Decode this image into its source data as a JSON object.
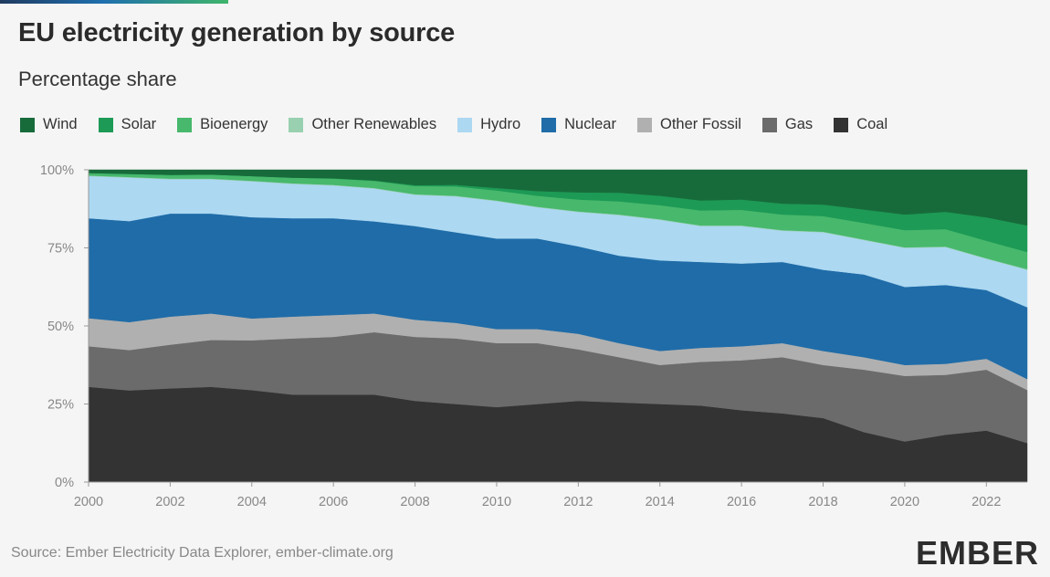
{
  "title": "EU electricity generation by source",
  "subtitle": "Percentage share",
  "source": "Source: Ember Electricity Data Explorer, ember-climate.org",
  "logo": "EMBER",
  "chart_data": {
    "type": "area",
    "stacked": true,
    "x": [
      2000,
      2001,
      2002,
      2003,
      2004,
      2005,
      2006,
      2007,
      2008,
      2009,
      2010,
      2011,
      2012,
      2013,
      2014,
      2015,
      2016,
      2017,
      2018,
      2019,
      2020,
      2021,
      2022,
      2023
    ],
    "x_ticks": [
      "2000",
      "2002",
      "2004",
      "2006",
      "2008",
      "2010",
      "2012",
      "2014",
      "2016",
      "2018",
      "2020",
      "2022"
    ],
    "y_ticks": [
      "0%",
      "25%",
      "50%",
      "75%",
      "100%"
    ],
    "ylim": [
      0,
      100
    ],
    "legend_position": "top-left",
    "series": [
      {
        "name": "Coal",
        "color": "#333333",
        "values": [
          30.5,
          29.5,
          30.0,
          30.5,
          29.5,
          28.0,
          28.0,
          28.0,
          26.0,
          25.0,
          24.0,
          25.0,
          26.0,
          25.5,
          25.0,
          24.5,
          23.0,
          22.0,
          20.5,
          16.0,
          13.0,
          15.0,
          16.5,
          12.5
        ]
      },
      {
        "name": "Gas",
        "color": "#6b6b6b",
        "values": [
          13.0,
          13.0,
          14.0,
          15.0,
          16.0,
          18.0,
          18.5,
          20.0,
          20.5,
          21.0,
          20.5,
          19.5,
          16.5,
          14.5,
          12.5,
          14.0,
          16.0,
          18.0,
          17.0,
          20.0,
          21.0,
          19.0,
          19.5,
          17.0
        ]
      },
      {
        "name": "Other Fossil",
        "color": "#b0b0b0",
        "values": [
          9.0,
          9.0,
          9.0,
          8.5,
          7.0,
          7.0,
          7.0,
          6.0,
          5.5,
          5.0,
          4.5,
          4.5,
          5.0,
          4.5,
          4.5,
          4.5,
          4.5,
          4.5,
          4.5,
          4.0,
          3.5,
          3.5,
          3.5,
          3.5
        ]
      },
      {
        "name": "Nuclear",
        "color": "#1f6ca8",
        "values": [
          32.0,
          32.5,
          33.0,
          32.0,
          32.5,
          31.5,
          31.0,
          29.5,
          30.0,
          29.0,
          29.0,
          29.0,
          28.0,
          28.0,
          29.0,
          27.5,
          26.5,
          26.0,
          26.0,
          26.5,
          25.0,
          25.0,
          22.0,
          23.0
        ]
      },
      {
        "name": "Hydro",
        "color": "#acd8f2",
        "values": [
          13.5,
          14.0,
          11.0,
          11.0,
          11.5,
          11.0,
          10.5,
          10.5,
          10.0,
          11.5,
          12.0,
          10.0,
          11.0,
          13.0,
          13.0,
          11.5,
          12.0,
          10.0,
          12.0,
          11.0,
          12.5,
          12.0,
          10.0,
          12.0
        ]
      },
      {
        "name": "Other Renewables",
        "color": "#98d0b0",
        "values": [
          0.2,
          0.2,
          0.2,
          0.2,
          0.2,
          0.2,
          0.2,
          0.2,
          0.2,
          0.2,
          0.2,
          0.2,
          0.2,
          0.2,
          0.2,
          0.2,
          0.2,
          0.2,
          0.2,
          0.2,
          0.2,
          0.2,
          0.2,
          0.2
        ]
      },
      {
        "name": "Bioenergy",
        "color": "#47b86c",
        "values": [
          0.8,
          1.0,
          1.2,
          1.3,
          1.5,
          1.8,
          2.0,
          2.3,
          2.6,
          3.0,
          3.2,
          3.5,
          3.8,
          4.2,
          4.5,
          4.8,
          5.0,
          5.0,
          5.0,
          5.3,
          5.5,
          5.5,
          5.6,
          5.5
        ]
      },
      {
        "name": "Solar",
        "color": "#1d9a55",
        "values": [
          0.0,
          0.0,
          0.0,
          0.0,
          0.0,
          0.0,
          0.1,
          0.1,
          0.3,
          0.5,
          0.8,
          1.5,
          2.3,
          2.8,
          3.0,
          3.2,
          3.3,
          3.5,
          3.7,
          4.3,
          5.0,
          5.5,
          7.5,
          8.5
        ]
      },
      {
        "name": "Wind",
        "color": "#176b3a",
        "values": [
          1.0,
          1.3,
          1.6,
          1.5,
          2.0,
          2.5,
          2.7,
          3.4,
          4.9,
          4.8,
          5.8,
          6.8,
          7.2,
          7.3,
          8.3,
          9.8,
          9.5,
          10.8,
          11.1,
          12.7,
          14.3,
          13.3,
          15.2,
          17.8
        ]
      }
    ]
  },
  "legend": [
    {
      "label": "Wind",
      "color": "#176b3a"
    },
    {
      "label": "Solar",
      "color": "#1d9a55"
    },
    {
      "label": "Bioenergy",
      "color": "#47b86c"
    },
    {
      "label": "Other Renewables",
      "color": "#98d0b0"
    },
    {
      "label": "Hydro",
      "color": "#acd8f2"
    },
    {
      "label": "Nuclear",
      "color": "#1f6ca8"
    },
    {
      "label": "Other Fossil",
      "color": "#b0b0b0"
    },
    {
      "label": "Gas",
      "color": "#6b6b6b"
    },
    {
      "label": "Coal",
      "color": "#333333"
    }
  ]
}
